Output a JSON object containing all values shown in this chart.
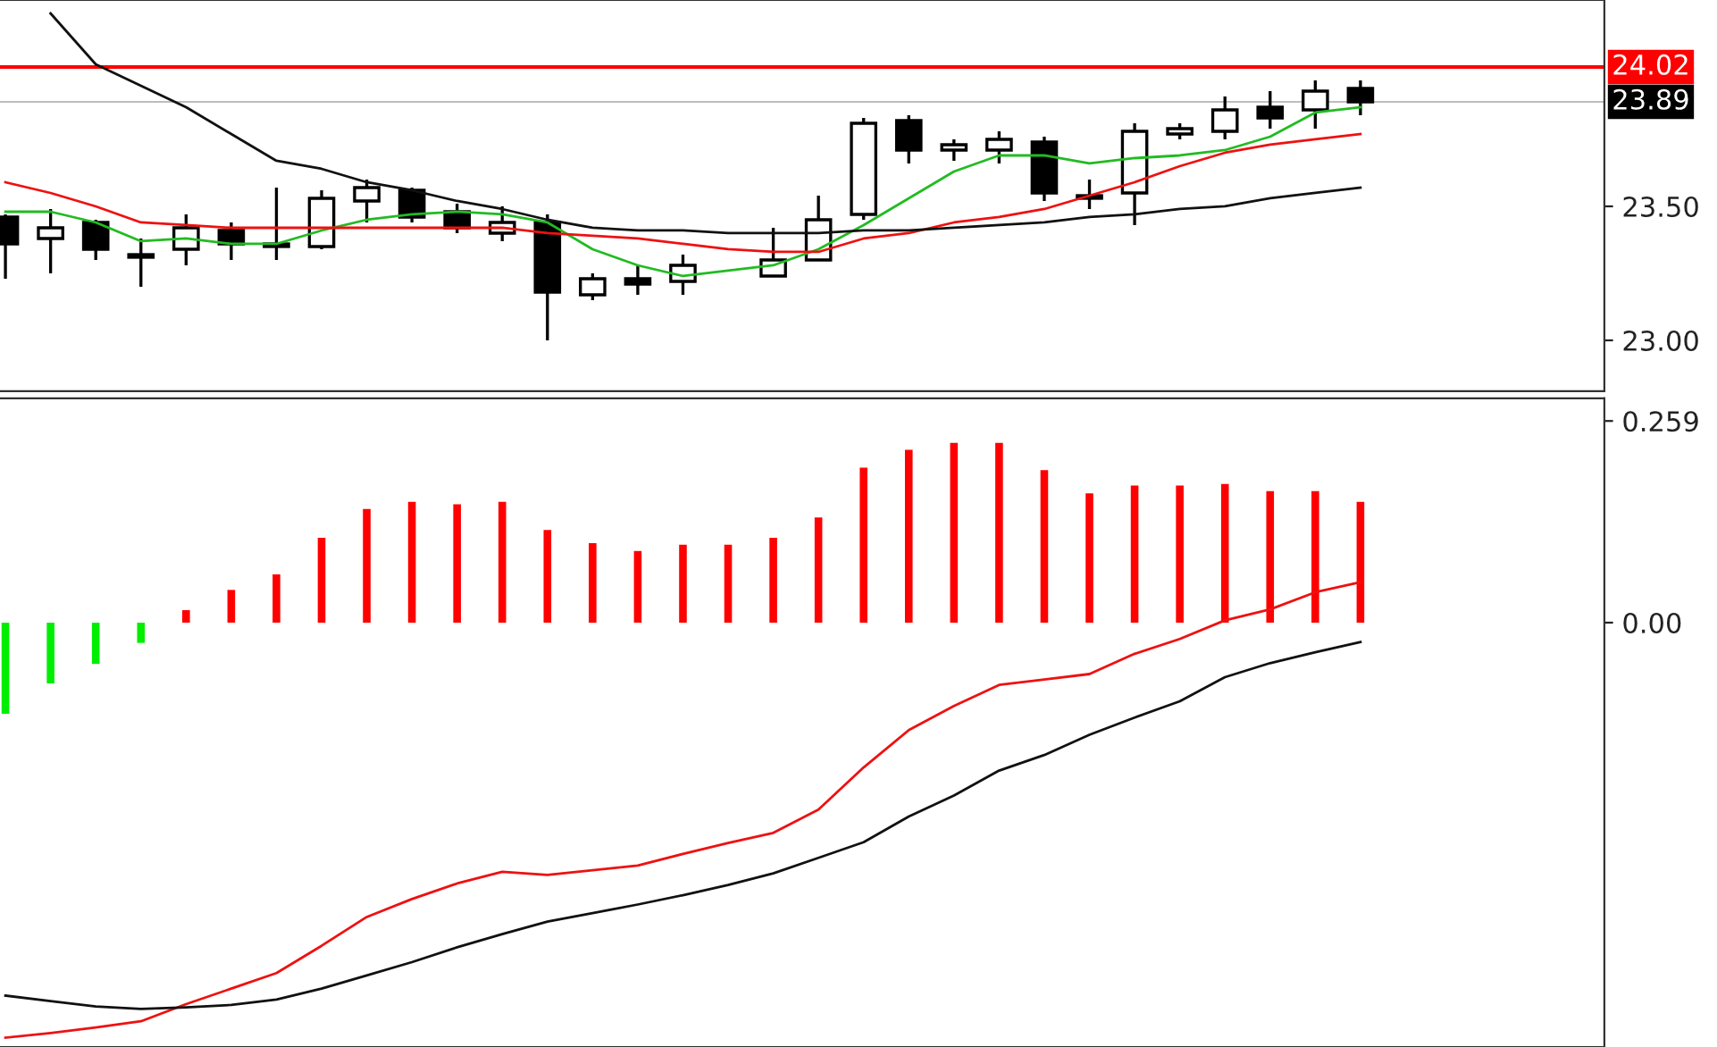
{
  "chart_data": [
    {
      "type": "candlestick",
      "categories": [
        null,
        null,
        null,
        null,
        null,
        null,
        null,
        null,
        null,
        null,
        null,
        null,
        null,
        null,
        null,
        null,
        null,
        null,
        null,
        null,
        null,
        null,
        null,
        null,
        null,
        null,
        null,
        null,
        null,
        null,
        null
      ],
      "ohlc": [
        [
          23.46,
          23.47,
          23.23,
          23.36
        ],
        [
          23.38,
          23.49,
          23.25,
          23.42
        ],
        [
          23.44,
          23.45,
          23.3,
          23.34
        ],
        [
          23.32,
          23.38,
          23.2,
          23.31
        ],
        [
          23.34,
          23.47,
          23.28,
          23.42
        ],
        [
          23.41,
          23.44,
          23.3,
          23.36
        ],
        [
          23.36,
          23.57,
          23.3,
          23.35
        ],
        [
          23.35,
          23.56,
          23.34,
          23.53
        ],
        [
          23.52,
          23.6,
          23.44,
          23.57
        ],
        [
          23.56,
          23.57,
          23.44,
          23.46
        ],
        [
          23.48,
          23.51,
          23.4,
          23.42
        ],
        [
          23.4,
          23.5,
          23.37,
          23.44
        ],
        [
          23.44,
          23.47,
          23.0,
          23.18
        ],
        [
          23.17,
          23.25,
          23.15,
          23.23
        ],
        [
          23.23,
          23.28,
          23.17,
          23.21
        ],
        [
          23.22,
          23.32,
          23.17,
          23.28
        ],
        null,
        [
          23.24,
          23.42,
          23.24,
          23.3
        ],
        [
          23.3,
          23.54,
          23.3,
          23.45
        ],
        [
          23.47,
          23.83,
          23.45,
          23.81
        ],
        [
          23.82,
          23.84,
          23.66,
          23.71
        ],
        [
          23.71,
          23.75,
          23.67,
          23.73
        ],
        [
          23.71,
          23.78,
          23.66,
          23.75
        ],
        [
          23.74,
          23.76,
          23.52,
          23.55
        ],
        [
          23.54,
          23.6,
          23.49,
          23.53
        ],
        [
          23.55,
          23.81,
          23.43,
          23.78
        ],
        [
          23.77,
          23.81,
          23.75,
          23.79
        ],
        [
          23.78,
          23.91,
          23.75,
          23.86
        ],
        [
          23.87,
          23.93,
          23.79,
          23.83
        ],
        [
          23.86,
          23.97,
          23.79,
          23.93
        ],
        [
          23.94,
          23.97,
          23.84,
          23.89
        ]
      ],
      "series": [
        {
          "type": "line",
          "color": "#22bb22",
          "values": [
            23.48,
            23.48,
            23.44,
            23.37,
            23.38,
            23.36,
            23.36,
            23.41,
            23.45,
            23.47,
            23.48,
            23.47,
            23.44,
            23.34,
            23.28,
            23.24,
            23.26,
            23.28,
            23.34,
            23.43,
            23.53,
            23.63,
            23.69,
            23.69,
            23.66,
            23.68,
            23.69,
            23.71,
            23.76,
            23.85,
            23.87
          ]
        },
        {
          "type": "line",
          "color": "#ee1111",
          "values": [
            23.59,
            23.55,
            23.5,
            23.44,
            23.43,
            23.42,
            23.42,
            23.42,
            23.42,
            23.42,
            23.42,
            23.42,
            23.4,
            23.39,
            23.38,
            23.36,
            23.34,
            23.33,
            23.33,
            23.38,
            23.4,
            23.44,
            23.46,
            23.49,
            23.54,
            23.59,
            23.65,
            23.7,
            23.73,
            23.75,
            23.77
          ]
        },
        {
          "type": "line",
          "color": "#111111",
          "values": [
            null,
            24.22,
            24.03,
            23.95,
            23.87,
            23.77,
            23.67,
            23.64,
            23.59,
            23.56,
            23.52,
            23.49,
            23.45,
            23.42,
            23.41,
            23.41,
            23.4,
            23.4,
            23.4,
            23.41,
            23.41,
            23.42,
            23.43,
            23.44,
            23.46,
            23.47,
            23.49,
            23.5,
            23.53,
            23.55,
            23.57
          ]
        }
      ],
      "ref_lines": [
        {
          "axis": "y",
          "value": 24.02,
          "label": "24.02",
          "color": "#ff0000"
        },
        {
          "axis": "y",
          "value": 23.89,
          "label": "23.89",
          "color": "#000000"
        }
      ],
      "ylim": [
        22.81,
        24.27
      ],
      "yticks": [
        {
          "value": 23.0,
          "label": "23.00"
        },
        {
          "value": 23.5,
          "label": "23.50"
        }
      ],
      "tick_labels": "y",
      "grid": false
    },
    {
      "type": "bar",
      "categories": [
        null,
        null,
        null,
        null,
        null,
        null,
        null,
        null,
        null,
        null,
        null,
        null,
        null,
        null,
        null,
        null,
        null,
        null,
        null,
        null,
        null,
        null,
        null,
        null,
        null,
        null,
        null,
        null,
        null,
        null,
        null
      ],
      "series": [
        {
          "type": "bar",
          "colors": [
            "#00ee00",
            "#00ee00",
            "#00ee00",
            "#00ee00",
            "#ff0000",
            "#ff0000",
            "#ff0000",
            "#ff0000",
            "#ff0000",
            "#ff0000",
            "#ff0000",
            "#ff0000",
            "#ff0000",
            "#ff0000",
            "#ff0000",
            "#ff0000",
            "#ff0000",
            "#ff0000",
            "#ff0000",
            "#ff0000",
            "#ff0000",
            "#ff0000",
            "#ff0000",
            "#ff0000",
            "#ff0000",
            "#ff0000",
            "#ff0000",
            "#ff0000",
            "#ff0000",
            "#ff0000",
            "#ff0000"
          ],
          "values": [
            -0.117,
            -0.078,
            -0.053,
            -0.026,
            0.016,
            0.042,
            0.062,
            0.109,
            0.146,
            0.155,
            0.152,
            0.155,
            0.119,
            0.102,
            0.092,
            0.1,
            0.1,
            0.109,
            0.135,
            0.199,
            0.222,
            0.231,
            0.231,
            0.196,
            0.166,
            0.176,
            0.176,
            0.178,
            0.169,
            0.169,
            0.155
          ]
        },
        {
          "type": "line",
          "color": "#ee1111",
          "values": [
            -0.533,
            -0.527,
            -0.52,
            -0.512,
            -0.49,
            -0.47,
            -0.45,
            -0.415,
            -0.378,
            -0.355,
            -0.335,
            -0.32,
            -0.324,
            -0.318,
            -0.312,
            -0.297,
            -0.283,
            -0.27,
            -0.24,
            -0.186,
            -0.138,
            -0.107,
            -0.08,
            -0.073,
            -0.066,
            -0.04,
            -0.021,
            0.003,
            0.017,
            0.039,
            0.052
          ]
        },
        {
          "type": "line",
          "color": "#111111",
          "values": [
            -0.479,
            -0.486,
            -0.493,
            -0.496,
            -0.494,
            -0.491,
            -0.484,
            -0.47,
            -0.453,
            -0.436,
            -0.417,
            -0.4,
            -0.384,
            -0.373,
            -0.362,
            -0.35,
            -0.337,
            -0.322,
            -0.302,
            -0.282,
            -0.249,
            -0.222,
            -0.19,
            -0.17,
            -0.144,
            -0.122,
            -0.101,
            -0.07,
            -0.052,
            -0.038,
            -0.025
          ]
        }
      ],
      "ylim": [
        -0.545,
        0.288
      ],
      "yticks": [
        0.259,
        {
          "value": 0,
          "label": "0.00"
        }
      ],
      "tick_labels": "y",
      "grid": false
    }
  ]
}
